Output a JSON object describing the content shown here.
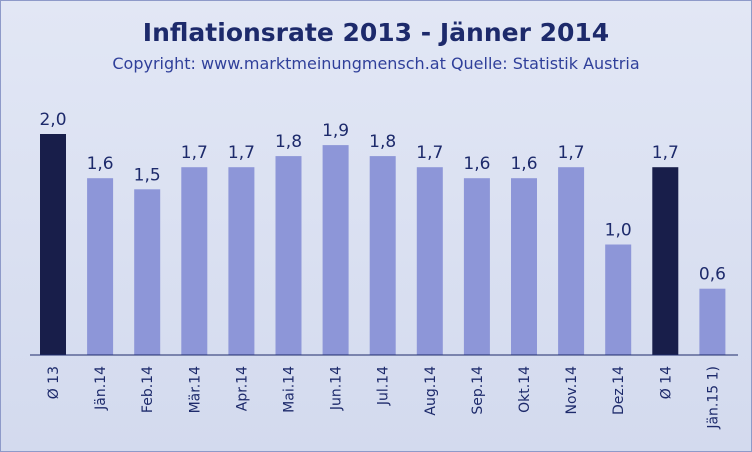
{
  "chart_data": {
    "type": "bar",
    "title": "Inflationsrate 2013 - Jänner 2014",
    "subtitle": "Copyright: www.marktmeinungmensch.at Quelle: Statistik Austria",
    "categories": [
      "Ø 13",
      "Jän.14",
      "Feb.14",
      "Mär.14",
      "Apr.14",
      "Mai.14",
      "Jun.14",
      "Jul.14",
      "Aug.14",
      "Sep.14",
      "Okt.14",
      "Nov.14",
      "Dez.14",
      "Ø 14",
      "Jän.15 1)"
    ],
    "values": [
      2.0,
      1.6,
      1.5,
      1.7,
      1.7,
      1.8,
      1.9,
      1.8,
      1.7,
      1.6,
      1.6,
      1.7,
      1.0,
      1.7,
      0.6
    ],
    "value_labels": [
      "2,0",
      "1,6",
      "1,5",
      "1,7",
      "1,7",
      "1,8",
      "1,9",
      "1,8",
      "1,7",
      "1,6",
      "1,6",
      "1,7",
      "1,0",
      "1,7",
      "0,6"
    ],
    "highlight": [
      true,
      false,
      false,
      false,
      false,
      false,
      false,
      false,
      false,
      false,
      false,
      false,
      false,
      true,
      false
    ],
    "ylim": [
      0,
      2.0
    ],
    "grid": false,
    "legend": "none",
    "colors": {
      "bar": "#8d96d8",
      "highlight": "#181e4a",
      "axis": "#1d2a6b"
    }
  }
}
